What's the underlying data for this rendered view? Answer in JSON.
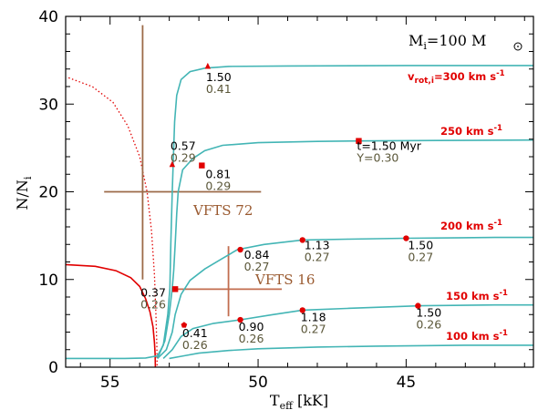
{
  "chart_data": {
    "type": "line",
    "xlabel": "T",
    "xlabel_sub": "eff",
    "xlabel_unit": "[kK]",
    "ylabel": "N/N",
    "ylabel_sub": "i",
    "xlim": [
      56.5,
      40.7
    ],
    "ylim": [
      0,
      40
    ],
    "x_ticks": [
      55,
      50,
      45
    ],
    "y_ticks": [
      0,
      10,
      20,
      30,
      40
    ],
    "annotation_mass": "M",
    "annotation_mass_sub": "i",
    "annotation_mass_value": "=100  M",
    "series": [
      {
        "label_text": "v",
        "label_sub": "rot,i",
        "label_value": "=300 km s",
        "label_exp": "-1",
        "pts": [
          [
            56.5,
            1
          ],
          [
            54.5,
            1
          ],
          [
            53.8,
            1.05
          ],
          [
            53.4,
            1.3
          ],
          [
            53.2,
            2.5
          ],
          [
            53.05,
            6
          ],
          [
            52.98,
            9
          ],
          [
            52.95,
            14
          ],
          [
            52.9,
            20
          ],
          [
            52.85,
            25
          ],
          [
            52.82,
            28
          ],
          [
            52.75,
            31
          ],
          [
            52.6,
            32.8
          ],
          [
            52.3,
            33.7
          ],
          [
            51.8,
            34.1
          ],
          [
            51.0,
            34.3
          ],
          [
            49,
            34.35
          ],
          [
            45,
            34.4
          ],
          [
            40.7,
            34.4
          ]
        ],
        "markers": [
          {
            "x": 51.7,
            "y": 34.3,
            "shape": "triangle",
            "age": "1.50",
            "Y": "0.41"
          }
        ]
      },
      {
        "label_text": "250 km s",
        "label_exp": "-1",
        "pts": [
          [
            53.4,
            1
          ],
          [
            53.15,
            3
          ],
          [
            53.0,
            6
          ],
          [
            52.9,
            9
          ],
          [
            52.85,
            11
          ],
          [
            52.8,
            14
          ],
          [
            52.75,
            17.5
          ],
          [
            52.7,
            20
          ],
          [
            52.55,
            22.5
          ],
          [
            52.2,
            23.8
          ],
          [
            51.8,
            24.7
          ],
          [
            51.2,
            25.3
          ],
          [
            50,
            25.6
          ],
          [
            48,
            25.75
          ],
          [
            46.6,
            25.8
          ],
          [
            44,
            25.85
          ],
          [
            40.7,
            25.9
          ]
        ],
        "markers": [
          {
            "x": 52.9,
            "y": 23.1,
            "shape": "triangle",
            "age": "0.57",
            "Y": "0.29"
          },
          {
            "x": 51.9,
            "y": 23.0,
            "shape": "square",
            "age": "0.81",
            "Y": "0.29"
          },
          {
            "x": 46.6,
            "y": 25.8,
            "shape": "square",
            "age": "t=1.50 Myr",
            "Y": "Y=0.30"
          }
        ]
      },
      {
        "label_text": "200 km s",
        "label_exp": "-1",
        "pts": [
          [
            53.4,
            1
          ],
          [
            53.1,
            2
          ],
          [
            52.9,
            4
          ],
          [
            52.8,
            6
          ],
          [
            52.6,
            8.3
          ],
          [
            52.3,
            9.9
          ],
          [
            51.8,
            11.2
          ],
          [
            51.2,
            12.4
          ],
          [
            50.7,
            13.4
          ],
          [
            49.8,
            14.0
          ],
          [
            48.5,
            14.5
          ],
          [
            47,
            14.6
          ],
          [
            45,
            14.7
          ],
          [
            42,
            14.8
          ],
          [
            40.7,
            14.8
          ]
        ],
        "markers": [
          {
            "x": 52.8,
            "y": 8.9,
            "shape": "square",
            "age": "0.37",
            "Y": "0.26"
          },
          {
            "x": 50.6,
            "y": 13.4,
            "shape": "circle",
            "age": "0.84",
            "Y": "0.27"
          },
          {
            "x": 48.5,
            "y": 14.5,
            "shape": "circle",
            "age": "1.13",
            "Y": "0.27"
          },
          {
            "x": 45.0,
            "y": 14.7,
            "shape": "circle",
            "age": "1.50",
            "Y": "0.27"
          }
        ]
      },
      {
        "label_text": "150 km s",
        "label_exp": "-1",
        "pts": [
          [
            53.2,
            1
          ],
          [
            52.9,
            2
          ],
          [
            52.6,
            3.5
          ],
          [
            52.2,
            4.4
          ],
          [
            51.5,
            5.0
          ],
          [
            50.6,
            5.4
          ],
          [
            49.5,
            6.0
          ],
          [
            48.5,
            6.5
          ],
          [
            47,
            6.7
          ],
          [
            44.5,
            7.0
          ],
          [
            42,
            7.1
          ],
          [
            40.7,
            7.1
          ]
        ],
        "markers": [
          {
            "x": 52.5,
            "y": 4.8,
            "shape": "pentagon",
            "age": "0.41",
            "Y": "0.26"
          },
          {
            "x": 50.6,
            "y": 5.4,
            "shape": "circle",
            "age": "0.90",
            "Y": "0.26"
          },
          {
            "x": 48.5,
            "y": 6.5,
            "shape": "circle",
            "age": "1.18",
            "Y": "0.27"
          },
          {
            "x": 44.6,
            "y": 7.0,
            "shape": "circle",
            "age": "1.50",
            "Y": "0.26"
          }
        ]
      },
      {
        "label_text": "100 km s",
        "label_exp": "-1",
        "pts": [
          [
            53.0,
            1
          ],
          [
            52.5,
            1.3
          ],
          [
            52,
            1.6
          ],
          [
            51,
            1.9
          ],
          [
            50,
            2.1
          ],
          [
            48,
            2.3
          ],
          [
            46,
            2.4
          ],
          [
            43,
            2.5
          ],
          [
            40.7,
            2.5
          ]
        ]
      }
    ],
    "red_solid": [
      [
        56.5,
        11.7
      ],
      [
        55.5,
        11.5
      ],
      [
        54.8,
        11.0
      ],
      [
        54.3,
        10.2
      ],
      [
        54.0,
        9.2
      ],
      [
        53.8,
        7.8
      ],
      [
        53.65,
        6.3
      ],
      [
        53.55,
        4.6
      ],
      [
        53.5,
        2.8
      ],
      [
        53.48,
        1.5
      ],
      [
        53.47,
        0
      ]
    ],
    "red_dotted": [
      [
        56.4,
        33.0
      ],
      [
        55.6,
        32.0
      ],
      [
        54.9,
        30.2
      ],
      [
        54.4,
        27.5
      ],
      [
        54.0,
        24.0
      ],
      [
        53.75,
        20.0
      ],
      [
        53.6,
        15.5
      ],
      [
        53.5,
        10.5
      ],
      [
        53.45,
        6.0
      ],
      [
        53.42,
        2.5
      ],
      [
        53.41,
        0
      ]
    ],
    "stars": [
      {
        "name": "VFTS 72",
        "x": 53.9,
        "y": 20.0,
        "x_err": [
          55.2,
          49.9
        ],
        "y_err": [
          10.0,
          39.0
        ]
      },
      {
        "name": "VFTS 16",
        "x": 51.0,
        "y": 8.9,
        "x_err": [
          52.8,
          49.2
        ],
        "y_err": [
          5.8,
          13.8
        ]
      }
    ],
    "colors": {
      "track": "#43b5b5",
      "red": "#e10000",
      "vfts72": "#9c6a48",
      "vfts16": "#c26d4f",
      "age_text": "#000000",
      "y_text": "#5a5638"
    }
  }
}
